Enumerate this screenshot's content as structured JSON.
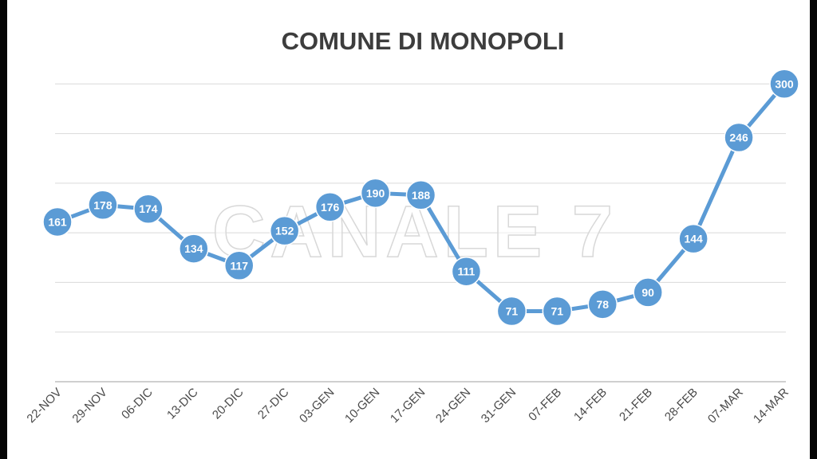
{
  "watermark": "CANALE 7",
  "chart_data": {
    "type": "line",
    "title": "COMUNE DI MONOPOLI",
    "categories": [
      "22-NOV",
      "29-NOV",
      "06-DIC",
      "13-DIC",
      "20-DIC",
      "27-DIC",
      "03-GEN",
      "10-GEN",
      "17-GEN",
      "24-GEN",
      "31-GEN",
      "07-FEB",
      "14-FEB",
      "21-FEB",
      "28-FEB",
      "07-MAR",
      "14-MAR"
    ],
    "series": [
      {
        "values": [
          161,
          178,
          174,
          134,
          117,
          152,
          176,
          190,
          188,
          111,
          71,
          71,
          78,
          90,
          144,
          246,
          300
        ]
      }
    ],
    "xlabel": "",
    "ylabel": "",
    "ylim": [
      0,
      350
    ],
    "grid": true,
    "legend": "none",
    "colors": {
      "series": "#5b9bd5",
      "grid": "#d9d9d9",
      "axis": "#bfbfbf",
      "title": "#3d3d3d",
      "ticks": "#4a4a4a"
    }
  }
}
